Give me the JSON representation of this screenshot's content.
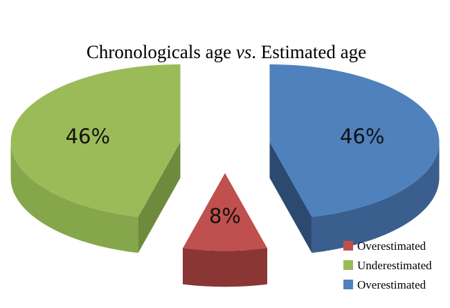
{
  "chart_data": {
    "type": "pie",
    "style": "3d-exploded",
    "title": {
      "prefix": "Chronologicals age ",
      "italic": "vs",
      "suffix": ". Estimated age"
    },
    "slices": [
      {
        "name": "Overestimated",
        "value": 46,
        "label": "46%",
        "color": "#4F81BD",
        "side": "#2C4A70",
        "side_light": "#3A5F8E"
      },
      {
        "name": "Overestimated",
        "value": 8,
        "label": "8%",
        "color": "#C0504D",
        "side": "#6B2726",
        "side_light": "#8A3634"
      },
      {
        "name": "Underestimated",
        "value": 46,
        "label": "46%",
        "color": "#9BBB59",
        "side": "#6E8A3C",
        "side_light": "#86A64B"
      }
    ],
    "legend": {
      "placement": "bottom-right",
      "entries": [
        {
          "label": "Overestimated",
          "color": "#C0504D"
        },
        {
          "label": "Underestimated",
          "color": "#9BBB59"
        },
        {
          "label": "Overestimated",
          "color": "#4F81BD"
        }
      ]
    }
  }
}
